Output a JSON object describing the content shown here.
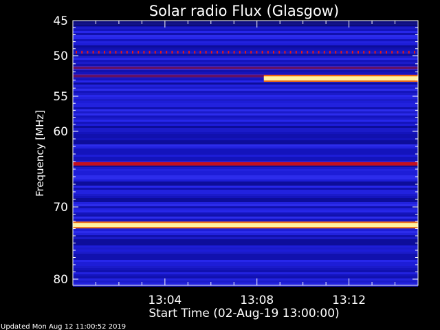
{
  "chart_data": {
    "type": "heatmap",
    "title": "Solar radio Flux (Glasgow)",
    "ylabel": "Frequency [MHz]",
    "xlabel": "Start Time (02-Aug-19 13:00:00)",
    "ylim": [
      45,
      80
    ],
    "y_axis_direction": "downward-increasing",
    "xlim_minutes_after_13_00": [
      0,
      15
    ],
    "y_ticks": [
      "45",
      "50",
      "55",
      "60",
      "70",
      "80"
    ],
    "x_ticks": [
      {
        "minutes": 4,
        "label": "13:04"
      },
      {
        "minutes": 8,
        "label": "13:08"
      },
      {
        "minutes": 12,
        "label": "13:12"
      }
    ],
    "bands": [
      {
        "freq_mhz": 49.5,
        "level": "intermittent-red"
      },
      {
        "freq_mhz": 51.5,
        "level": "dark-red"
      },
      {
        "freq_mhz": 52.5,
        "level": "dark-red"
      },
      {
        "freq_mhz": 52.8,
        "level": "bright-yellow",
        "start_minutes": 8.3
      },
      {
        "freq_mhz": 64.3,
        "level": "red"
      },
      {
        "freq_mhz": 72.5,
        "level": "bright-yellow"
      }
    ],
    "colors": {
      "background": "#000000",
      "base_blue": "#1a1ad0",
      "red": "#c4101e",
      "yellow": "#fff2a0"
    }
  },
  "footer": {
    "updated": "Updated Mon Aug 12 11:00:52 2019"
  }
}
